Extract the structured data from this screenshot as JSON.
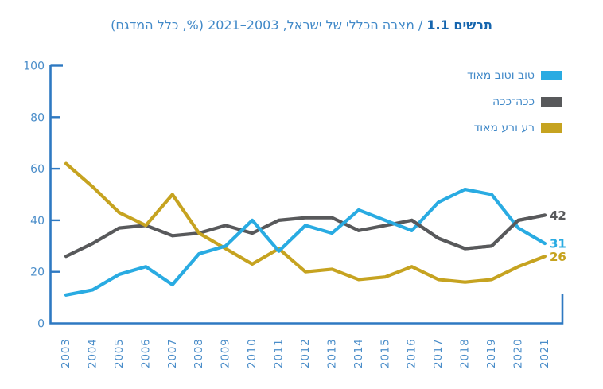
{
  "title": {
    "chart_label": "תרשים 1.1",
    "separator": " / ",
    "text": "מצבה הכללי של ישראל, 2003–2021 (%, כלל המדגם)"
  },
  "colors": {
    "axis": "#2E79C2",
    "axis_labels": "#4A8DC9",
    "title_label": "#1565AE",
    "title_text": "#4189C8",
    "legend_text": "#4189C8"
  },
  "chart_data": {
    "type": "line",
    "title": "תרשים 1.1 / מצבה הכללי של ישראל, 2003–2021 (%, כלל המדגם)",
    "categories": [
      "2003",
      "2004",
      "2005",
      "2006",
      "2007",
      "2008",
      "2009",
      "2010",
      "2011",
      "2012",
      "2013",
      "2014",
      "2015",
      "2016",
      "2017",
      "2018",
      "2019",
      "2020",
      "2021"
    ],
    "series": [
      {
        "id": "good",
        "name": "טוב וטוב מאוד",
        "color": "#29ABE2",
        "values": [
          11,
          13,
          19,
          22,
          15,
          27,
          30,
          40,
          28,
          38,
          35,
          44,
          40,
          36,
          47,
          52,
          50,
          37,
          31
        ],
        "end_label": "31"
      },
      {
        "id": "soso",
        "name": "ככה־ככה",
        "color": "#58595B",
        "values": [
          26,
          31,
          37,
          38,
          34,
          35,
          38,
          35,
          40,
          41,
          41,
          36,
          38,
          40,
          33,
          29,
          30,
          40,
          42
        ],
        "end_label": "42"
      },
      {
        "id": "bad",
        "name": "רע ורע מאוד",
        "color": "#C6A320",
        "values": [
          62,
          53,
          43,
          38,
          50,
          35,
          29,
          23,
          29,
          20,
          21,
          17,
          18,
          22,
          17,
          16,
          17,
          22,
          26
        ],
        "end_label": "26"
      }
    ],
    "ylim": [
      0,
      100
    ],
    "yticks": [
      "0",
      "20",
      "40",
      "60",
      "80",
      "100"
    ],
    "grid": false,
    "legend_position": "top-right"
  }
}
